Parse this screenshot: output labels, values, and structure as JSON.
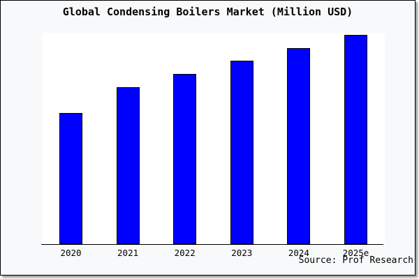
{
  "window": {
    "background_color": "#f8f9fa",
    "plot_background_color": "#ffffff",
    "border_color": "#000000"
  },
  "chart_data": {
    "type": "bar",
    "title": "Global Condensing Boilers Market (Million USD)",
    "categories": [
      "2020",
      "2021",
      "2022",
      "2023",
      "2024",
      "2025e"
    ],
    "values": [
      188,
      225,
      244,
      263,
      281,
      300
    ],
    "units": "relative (no y-axis scale shown)",
    "xlabel": "",
    "ylabel": "",
    "ylim": [
      0,
      300
    ],
    "grid": false,
    "legend": false,
    "bar_color": "#0000ff",
    "bar_border_color": "#000000",
    "source": "Source: Prof Research"
  }
}
